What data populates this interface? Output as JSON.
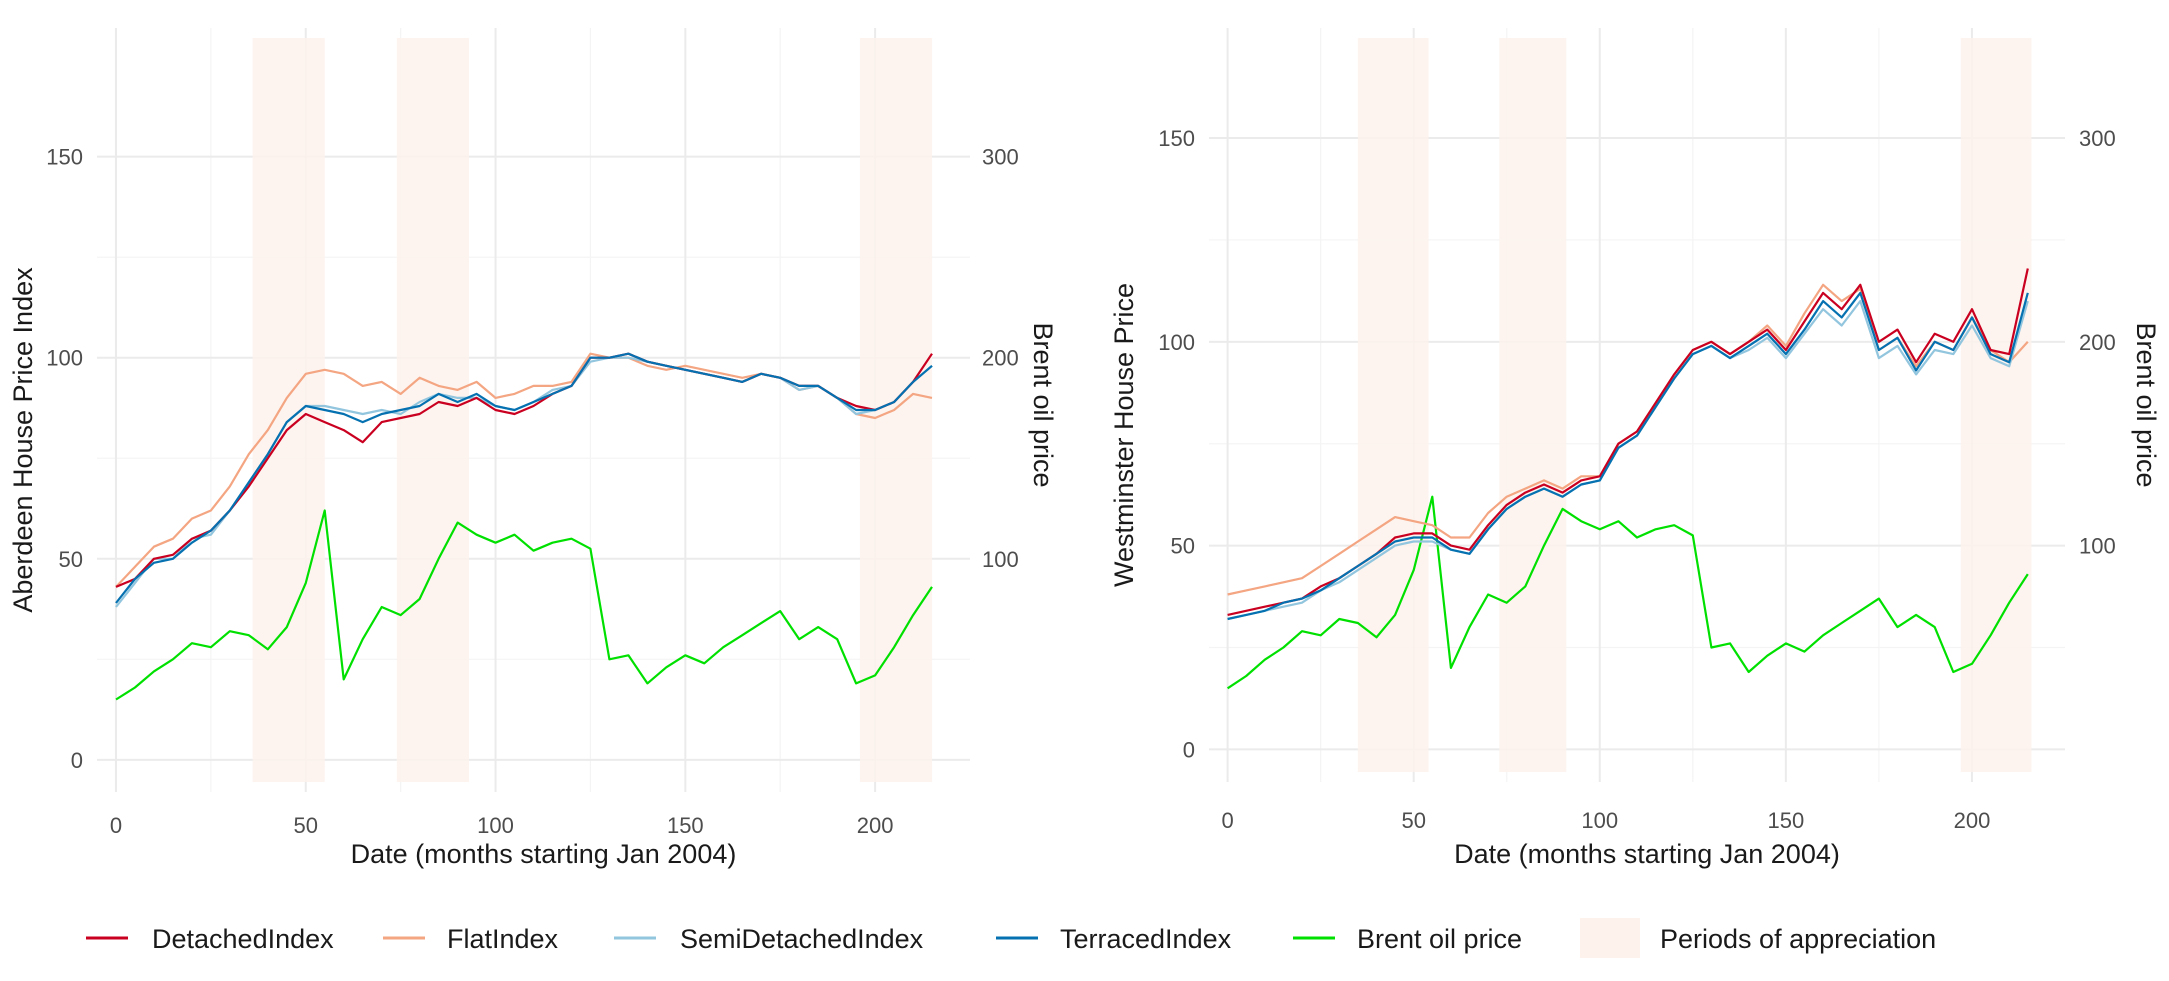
{
  "chart_data": [
    {
      "type": "line",
      "xlabel": "Date (months starting Jan 2004)",
      "ylabel": "Aberdeen House Price Index",
      "y2label": "Brent oil price",
      "xlim": [
        -5,
        225
      ],
      "ylim": [
        -8,
        182
      ],
      "y2lim": [
        -16,
        364
      ],
      "x_ticks": [
        0,
        50,
        100,
        150,
        200
      ],
      "y_ticks": [
        0,
        50,
        100,
        150
      ],
      "y2_ticks": [
        100,
        200,
        300
      ],
      "grid": true,
      "periods_of_appreciation": [
        [
          36,
          55
        ],
        [
          74,
          93
        ],
        [
          196,
          215
        ]
      ],
      "x": [
        0,
        5,
        10,
        15,
        20,
        25,
        30,
        35,
        40,
        45,
        50,
        55,
        60,
        65,
        70,
        75,
        80,
        85,
        90,
        95,
        100,
        105,
        110,
        115,
        120,
        125,
        130,
        135,
        140,
        145,
        150,
        155,
        160,
        165,
        170,
        175,
        180,
        185,
        190,
        195,
        200,
        205,
        210,
        215
      ],
      "series": [
        {
          "name": "DetachedIndex",
          "color": "#ca0020",
          "axis": "left",
          "values": [
            43,
            45,
            50,
            51,
            55,
            57,
            62,
            68,
            75,
            82,
            86,
            84,
            82,
            79,
            84,
            85,
            86,
            89,
            88,
            90,
            87,
            86,
            88,
            91,
            93,
            100,
            100,
            101,
            99,
            98,
            97,
            96,
            95,
            94,
            96,
            95,
            93,
            93,
            90,
            88,
            87,
            89,
            94,
            101
          ]
        },
        {
          "name": "FlatIndex",
          "color": "#f4a582",
          "axis": "left",
          "values": [
            43,
            48,
            53,
            55,
            60,
            62,
            68,
            76,
            82,
            90,
            96,
            97,
            96,
            93,
            94,
            91,
            95,
            93,
            92,
            94,
            90,
            91,
            93,
            93,
            94,
            101,
            100,
            100,
            98,
            97,
            98,
            97,
            96,
            95,
            96,
            95,
            92,
            93,
            90,
            86,
            85,
            87,
            91,
            90
          ]
        },
        {
          "name": "SemiDetachedIndex",
          "color": "#92c5de",
          "axis": "left",
          "values": [
            38,
            44,
            50,
            50,
            55,
            56,
            62,
            69,
            76,
            84,
            88,
            88,
            87,
            86,
            87,
            86,
            89,
            91,
            90,
            90,
            88,
            87,
            89,
            92,
            93,
            99,
            100,
            100,
            99,
            98,
            97,
            96,
            95,
            94,
            96,
            95,
            92,
            93,
            90,
            86,
            87,
            89,
            94,
            98
          ]
        },
        {
          "name": "TerracedIndex",
          "color": "#0571b0",
          "axis": "left",
          "values": [
            39,
            45,
            49,
            50,
            54,
            57,
            62,
            69,
            76,
            84,
            88,
            87,
            86,
            84,
            86,
            87,
            88,
            91,
            89,
            91,
            88,
            87,
            89,
            91,
            93,
            100,
            100,
            101,
            99,
            98,
            97,
            96,
            95,
            94,
            96,
            95,
            93,
            93,
            90,
            87,
            87,
            89,
            94,
            98
          ]
        },
        {
          "name": "Brent oil price",
          "color": "#00e000",
          "axis": "right",
          "values": [
            30,
            36,
            44,
            50,
            58,
            56,
            64,
            62,
            55,
            66,
            88,
            124,
            40,
            60,
            76,
            72,
            80,
            100,
            118,
            112,
            108,
            112,
            104,
            108,
            110,
            105,
            50,
            52,
            38,
            46,
            52,
            48,
            56,
            62,
            68,
            74,
            60,
            66,
            60,
            38,
            42,
            56,
            72,
            86
          ]
        }
      ]
    },
    {
      "type": "line",
      "xlabel": "Date (months starting Jan 2004)",
      "ylabel": "Westminster House Price",
      "y2label": "Brent oil price",
      "xlim": [
        -5,
        225
      ],
      "ylim": [
        -8,
        177
      ],
      "y2lim": [
        -16,
        354
      ],
      "x_ticks": [
        0,
        50,
        100,
        150,
        200
      ],
      "y_ticks": [
        0,
        50,
        100,
        150
      ],
      "y2_ticks": [
        100,
        200,
        300
      ],
      "grid": true,
      "periods_of_appreciation": [
        [
          35,
          54
        ],
        [
          73,
          91
        ],
        [
          197,
          216
        ]
      ],
      "x": [
        0,
        5,
        10,
        15,
        20,
        25,
        30,
        35,
        40,
        45,
        50,
        55,
        60,
        65,
        70,
        75,
        80,
        85,
        90,
        95,
        100,
        105,
        110,
        115,
        120,
        125,
        130,
        135,
        140,
        145,
        150,
        155,
        160,
        165,
        170,
        175,
        180,
        185,
        190,
        195,
        200,
        205,
        210,
        215
      ],
      "series": [
        {
          "name": "DetachedIndex",
          "color": "#ca0020",
          "axis": "left",
          "values": [
            33,
            34,
            35,
            36,
            37,
            40,
            42,
            45,
            48,
            52,
            53,
            53,
            50,
            49,
            55,
            60,
            63,
            65,
            63,
            66,
            67,
            75,
            78,
            85,
            92,
            98,
            100,
            97,
            100,
            103,
            98,
            105,
            112,
            108,
            114,
            100,
            103,
            95,
            102,
            100,
            108,
            98,
            97,
            118
          ]
        },
        {
          "name": "FlatIndex",
          "color": "#f4a582",
          "axis": "left",
          "values": [
            38,
            39,
            40,
            41,
            42,
            45,
            48,
            51,
            54,
            57,
            56,
            55,
            52,
            52,
            58,
            62,
            64,
            66,
            64,
            67,
            67,
            75,
            78,
            85,
            92,
            98,
            100,
            97,
            100,
            104,
            99,
            107,
            114,
            110,
            113,
            98,
            101,
            94,
            100,
            98,
            106,
            98,
            95,
            100
          ]
        },
        {
          "name": "SemiDetachedIndex",
          "color": "#92c5de",
          "axis": "left",
          "values": [
            32,
            33,
            34,
            35,
            36,
            39,
            41,
            44,
            47,
            50,
            51,
            51,
            49,
            48,
            54,
            59,
            62,
            64,
            62,
            65,
            66,
            74,
            77,
            84,
            91,
            97,
            99,
            96,
            98,
            101,
            96,
            102,
            108,
            104,
            110,
            96,
            99,
            92,
            98,
            97,
            104,
            96,
            94,
            110
          ]
        },
        {
          "name": "TerracedIndex",
          "color": "#0571b0",
          "axis": "left",
          "values": [
            32,
            33,
            34,
            36,
            37,
            39,
            42,
            45,
            48,
            51,
            52,
            52,
            49,
            48,
            54,
            59,
            62,
            64,
            62,
            65,
            66,
            74,
            77,
            84,
            91,
            97,
            99,
            96,
            99,
            102,
            97,
            103,
            110,
            106,
            112,
            98,
            101,
            93,
            100,
            98,
            106,
            97,
            95,
            112
          ]
        },
        {
          "name": "Brent oil price",
          "color": "#00e000",
          "axis": "right",
          "values": [
            30,
            36,
            44,
            50,
            58,
            56,
            64,
            62,
            55,
            66,
            88,
            124,
            40,
            60,
            76,
            72,
            80,
            100,
            118,
            112,
            108,
            112,
            104,
            108,
            110,
            105,
            50,
            52,
            38,
            46,
            52,
            48,
            56,
            62,
            68,
            74,
            60,
            66,
            60,
            38,
            42,
            56,
            72,
            86
          ]
        }
      ]
    }
  ],
  "legend": {
    "placement": "bottom",
    "items": [
      {
        "label": "DetachedIndex",
        "color": "#ca0020",
        "kind": "line"
      },
      {
        "label": "FlatIndex",
        "color": "#f4a582",
        "kind": "line"
      },
      {
        "label": "SemiDetachedIndex",
        "color": "#92c5de",
        "kind": "line"
      },
      {
        "label": "TerracedIndex",
        "color": "#0571b0",
        "kind": "line"
      },
      {
        "label": "Brent oil price",
        "color": "#00e000",
        "kind": "line"
      },
      {
        "label": "Periods of appreciation",
        "color": "#fdf2ec",
        "kind": "box"
      }
    ]
  },
  "colors": {
    "grid_major": "#ebebeb",
    "grid_minor": "#f4f4f4",
    "appreciation_band": "#fdf2ec"
  }
}
